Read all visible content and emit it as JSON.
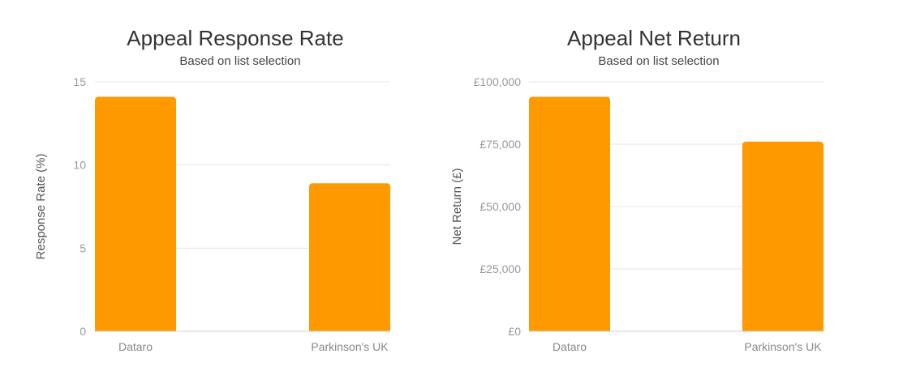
{
  "chart_data": [
    {
      "type": "bar",
      "title": "Appeal Response Rate",
      "subtitle": "Based on list selection",
      "xlabel": "",
      "ylabel": "Response Rate (%)",
      "categories": [
        "Dataro",
        "Parkinson's UK"
      ],
      "values": [
        14.1,
        8.9
      ],
      "ylim": [
        0,
        15
      ],
      "yticks": [
        0,
        5,
        10,
        15
      ],
      "ytick_labels": [
        "0",
        "5",
        "10",
        "15"
      ],
      "grid": true,
      "color": "#ff9900"
    },
    {
      "type": "bar",
      "title": "Appeal Net Return",
      "subtitle": "Based on list selection",
      "xlabel": "",
      "ylabel": "Net Return (£)",
      "categories": [
        "Dataro",
        "Parkinson's UK"
      ],
      "values": [
        94000,
        76000
      ],
      "ylim": [
        0,
        100000
      ],
      "yticks": [
        0,
        25000,
        50000,
        75000,
        100000
      ],
      "ytick_labels": [
        "£0",
        "£25,000",
        "£50,000",
        "£75,000",
        "£100,000"
      ],
      "grid": true,
      "color": "#ff9900"
    }
  ]
}
